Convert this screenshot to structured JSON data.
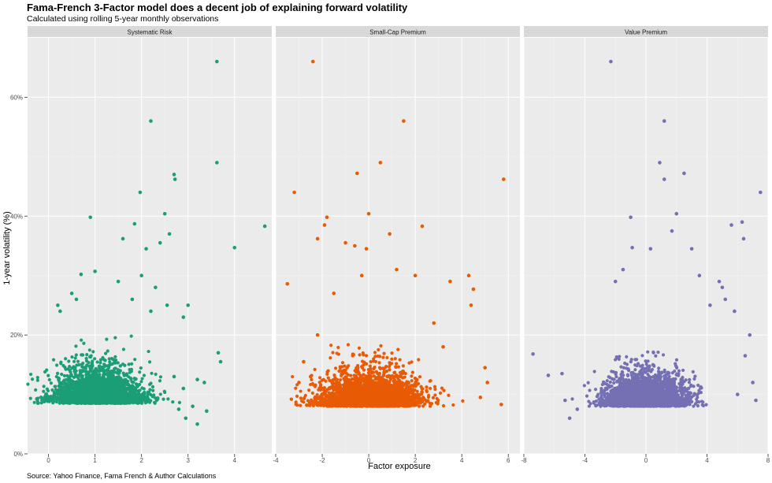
{
  "title": "Fama-French 3-Factor model does a decent job of explaining forward volatility",
  "subtitle": "Calculated using rolling 5-year monthly observations",
  "caption": "Source: Yahoo Finance, Fama French & Author Calculations",
  "chart_data": {
    "type": "scatter",
    "facet_layout": "1 row x 3 columns, shared y axis",
    "xlabel": "Factor exposure",
    "ylabel": "1-year volatility (%)",
    "ylim": [
      0,
      0.7
    ],
    "y_ticks": [
      0,
      0.2,
      0.4,
      0.6
    ],
    "y_tick_labels": [
      "0%",
      "20%",
      "40%",
      "60%"
    ],
    "grid": true,
    "panel_background": "#ebebeb",
    "strip_background": "#d9d9d9",
    "panels": [
      {
        "name": "Systematic Risk",
        "color": "#1b9e77",
        "xlim": [
          -0.45,
          4.8
        ],
        "x_ticks": [
          0,
          1,
          2,
          3,
          4
        ],
        "x_tick_labels": [
          "0",
          "1",
          "2",
          "3",
          "4"
        ],
        "cloud": {
          "center": [
            1.1,
            0.085
          ],
          "spread": [
            0.45,
            0.035
          ],
          "count": 3200
        },
        "points": [
          [
            3.62,
            0.66
          ],
          [
            2.2,
            0.56
          ],
          [
            3.62,
            0.49
          ],
          [
            2.7,
            0.47
          ],
          [
            2.72,
            0.462
          ],
          [
            1.97,
            0.44
          ],
          [
            0.9,
            0.398
          ],
          [
            2.5,
            0.404
          ],
          [
            1.85,
            0.387
          ],
          [
            4.65,
            0.383
          ],
          [
            2.6,
            0.37
          ],
          [
            1.6,
            0.362
          ],
          [
            4.0,
            0.347
          ],
          [
            2.1,
            0.345
          ],
          [
            2.4,
            0.355
          ],
          [
            1.0,
            0.307
          ],
          [
            0.7,
            0.302
          ],
          [
            2.55,
            0.25
          ],
          [
            3.0,
            0.25
          ],
          [
            2.9,
            0.23
          ],
          [
            3.65,
            0.17
          ],
          [
            3.7,
            0.155
          ],
          [
            3.2,
            0.125
          ],
          [
            3.35,
            0.12
          ],
          [
            2.9,
            0.11
          ],
          [
            3.1,
            0.08
          ],
          [
            3.4,
            0.072
          ],
          [
            2.95,
            0.06
          ],
          [
            3.2,
            0.05
          ],
          [
            2.8,
            0.075
          ],
          [
            2.7,
            0.13
          ],
          [
            2.3,
            0.28
          ],
          [
            2.0,
            0.3
          ],
          [
            1.5,
            0.29
          ],
          [
            0.2,
            0.25
          ],
          [
            0.25,
            0.24
          ],
          [
            0.5,
            0.27
          ],
          [
            0.6,
            0.26
          ],
          [
            1.8,
            0.26
          ],
          [
            2.2,
            0.24
          ]
        ]
      },
      {
        "name": "Small-Cap Premium",
        "color": "#e85a04",
        "xlim": [
          -4.0,
          6.5
        ],
        "x_ticks": [
          -4,
          -2,
          0,
          2,
          4,
          6
        ],
        "x_tick_labels": [
          "-4",
          "-2",
          "0",
          "2",
          "4",
          "6"
        ],
        "cloud": {
          "center": [
            0.0,
            0.08
          ],
          "spread": [
            1.05,
            0.035
          ],
          "count": 3200
        },
        "points": [
          [
            -2.4,
            0.66
          ],
          [
            1.5,
            0.56
          ],
          [
            0.5,
            0.49
          ],
          [
            -0.5,
            0.472
          ],
          [
            5.8,
            0.462
          ],
          [
            -3.2,
            0.44
          ],
          [
            0.0,
            0.404
          ],
          [
            -1.8,
            0.398
          ],
          [
            -1.9,
            0.385
          ],
          [
            2.3,
            0.383
          ],
          [
            -2.2,
            0.362
          ],
          [
            -1.0,
            0.355
          ],
          [
            -0.6,
            0.35
          ],
          [
            -0.1,
            0.345
          ],
          [
            0.9,
            0.37
          ],
          [
            -3.5,
            0.286
          ],
          [
            3.5,
            0.29
          ],
          [
            4.3,
            0.3
          ],
          [
            4.5,
            0.277
          ],
          [
            4.4,
            0.25
          ],
          [
            5.0,
            0.145
          ],
          [
            5.1,
            0.12
          ],
          [
            4.8,
            0.095
          ],
          [
            5.7,
            0.083
          ],
          [
            -2.8,
            0.155
          ],
          [
            -3.0,
            0.12
          ],
          [
            -2.5,
            0.13
          ],
          [
            -2.2,
            0.2
          ],
          [
            2.8,
            0.22
          ],
          [
            3.2,
            0.18
          ],
          [
            2.0,
            0.3
          ],
          [
            -1.5,
            0.27
          ],
          [
            1.2,
            0.31
          ],
          [
            -0.3,
            0.3
          ]
        ]
      },
      {
        "name": "Value Premium",
        "color": "#7570b3",
        "xlim": [
          -8.0,
          8.0
        ],
        "x_ticks": [
          -8,
          -4,
          0,
          4,
          8
        ],
        "x_tick_labels": [
          "-8",
          "-4",
          "0",
          "4",
          "8"
        ],
        "cloud": {
          "center": [
            0.0,
            0.08
          ],
          "spread": [
            1.3,
            0.035
          ],
          "count": 3200
        },
        "points": [
          [
            -2.3,
            0.66
          ],
          [
            1.2,
            0.56
          ],
          [
            0.9,
            0.49
          ],
          [
            2.5,
            0.472
          ],
          [
            1.2,
            0.462
          ],
          [
            7.5,
            0.44
          ],
          [
            2.0,
            0.404
          ],
          [
            -1.0,
            0.398
          ],
          [
            6.3,
            0.39
          ],
          [
            5.6,
            0.385
          ],
          [
            1.7,
            0.375
          ],
          [
            6.4,
            0.362
          ],
          [
            -0.9,
            0.347
          ],
          [
            0.3,
            0.345
          ],
          [
            3.0,
            0.345
          ],
          [
            -7.4,
            0.168
          ],
          [
            -6.4,
            0.132
          ],
          [
            -5.5,
            0.135
          ],
          [
            -5.3,
            0.09
          ],
          [
            -4.5,
            0.075
          ],
          [
            -5.0,
            0.06
          ],
          [
            6.8,
            0.2
          ],
          [
            6.5,
            0.165
          ],
          [
            7.0,
            0.12
          ],
          [
            5.8,
            0.24
          ],
          [
            5.2,
            0.26
          ],
          [
            4.8,
            0.29
          ],
          [
            5.0,
            0.28
          ],
          [
            3.5,
            0.3
          ],
          [
            -2.0,
            0.29
          ],
          [
            6.0,
            0.1
          ],
          [
            7.2,
            0.09
          ],
          [
            4.2,
            0.25
          ],
          [
            -1.5,
            0.31
          ]
        ]
      }
    ]
  }
}
